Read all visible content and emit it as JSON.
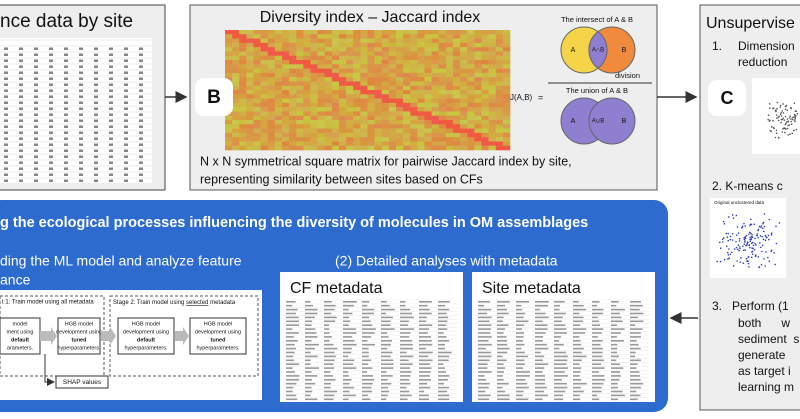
{
  "left_panel": {
    "title": "nce data by site"
  },
  "panel_b": {
    "title": "Diversity index – Jaccard index",
    "badge": "B",
    "formula": "J(A,B)",
    "equals": "=",
    "intersect_label": "The intersect of A & B",
    "union_label": "The union of A & B",
    "division": "division",
    "set_a": "A",
    "set_b": "B",
    "intersect": "A∩B",
    "union": "A∪B",
    "caption": [
      "N x N symmetrical square matrix for pairwise Jaccard index by site,",
      "representing similarity between sites based on CFs"
    ]
  },
  "panel_c": {
    "title": "Unsupervise",
    "badge": "C",
    "step1": [
      "1.",
      "Dimension",
      "reduction"
    ],
    "step2": "2.  K-means c",
    "plot_label": "Original unclustered data",
    "step3": [
      "3.   Perform (1",
      "both      w",
      "sediment  s",
      "generate",
      "as target i",
      "learning m"
    ]
  },
  "bottom": {
    "title": "g the ecological processes influencing the diversity of molecules in OM assemblages",
    "sub1": [
      "ding the ML model and analyze feature",
      "ance"
    ],
    "sub2": "(2) Detailed analyses with metadata",
    "stage1": "t 1: Train model using all metadata",
    "stage2_prefix": "Stage 2: Train model using ",
    "stage2_word": "selected",
    "stage2_suffix": " metadata",
    "box1": [
      "model",
      "ment using",
      "default",
      "arameters."
    ],
    "box2": [
      "HGB model",
      "development using",
      "tuned",
      "hyperparameters."
    ],
    "box3": [
      "HGB model",
      "development using",
      "default",
      "hyperparameters."
    ],
    "box4": [
      "HGB model",
      "development using",
      "tuned",
      "hyperparameters."
    ],
    "shap": "SHAP values",
    "cf_metadata": "CF metadata",
    "site_metadata": "Site metadata"
  }
}
